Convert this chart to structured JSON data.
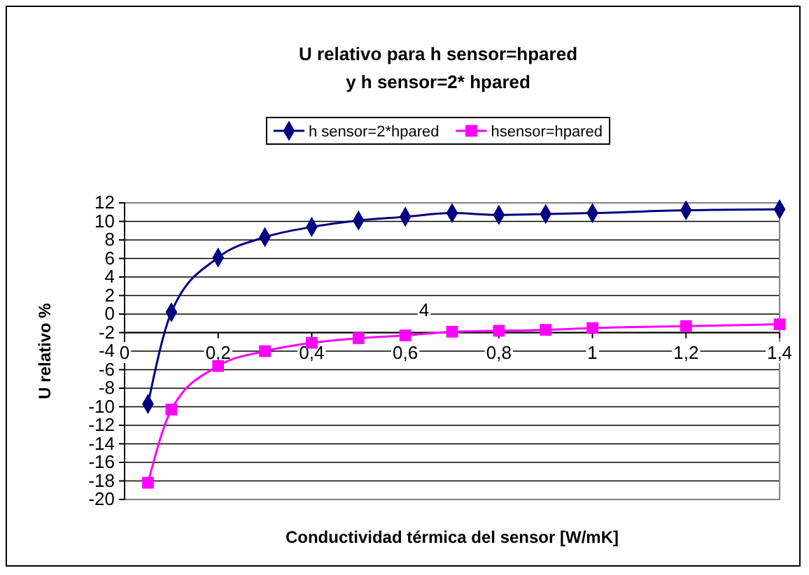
{
  "chart_data": {
    "type": "line",
    "title": "U relativo para h sensor=hpared\ny h sensor=2* hpared",
    "xlabel": "Conductividad térmica del sensor [W/mK]",
    "ylabel": "U relativo %",
    "x": [
      0.05,
      0.1,
      0.2,
      0.3,
      0.4,
      0.5,
      0.6,
      0.7,
      0.8,
      0.9,
      1.0,
      1.2,
      1.4
    ],
    "series": [
      {
        "name": "h sensor=2*hpared",
        "color": "#000080",
        "marker": "diamond",
        "values": [
          -9.7,
          0.2,
          6.1,
          8.3,
          9.4,
          10.1,
          10.5,
          10.9,
          10.7,
          10.8,
          10.9,
          11.2,
          11.3
        ]
      },
      {
        "name": "hsensor=hpared",
        "color": "#ff00ff",
        "marker": "square",
        "values": [
          -18.2,
          -10.3,
          -5.6,
          -4.0,
          -3.1,
          -2.6,
          -2.3,
          -1.9,
          -1.8,
          -1.7,
          -1.5,
          -1.3,
          -1.1
        ]
      }
    ],
    "xlim": [
      0,
      1.4
    ],
    "xticks": [
      0,
      {
        "value": 0.2,
        "label": "0,2"
      },
      {
        "value": 0.4,
        "label": "0,4"
      },
      {
        "value": 0.6,
        "label": "0,6"
      },
      {
        "value": 0.8,
        "label": "0,8"
      },
      1,
      {
        "value": 1.2,
        "label": "1,2"
      },
      {
        "value": 1.4,
        "label": "1,4"
      }
    ],
    "ylim": [
      -20,
      12
    ],
    "yticks": [
      -20,
      -18,
      -16,
      -14,
      -12,
      -10,
      -8,
      -6,
      -4,
      -2,
      0,
      2,
      4,
      6,
      8,
      10,
      12
    ],
    "grid": "y",
    "legend": "top",
    "line_style": "solid",
    "annotations": [
      "4"
    ]
  }
}
